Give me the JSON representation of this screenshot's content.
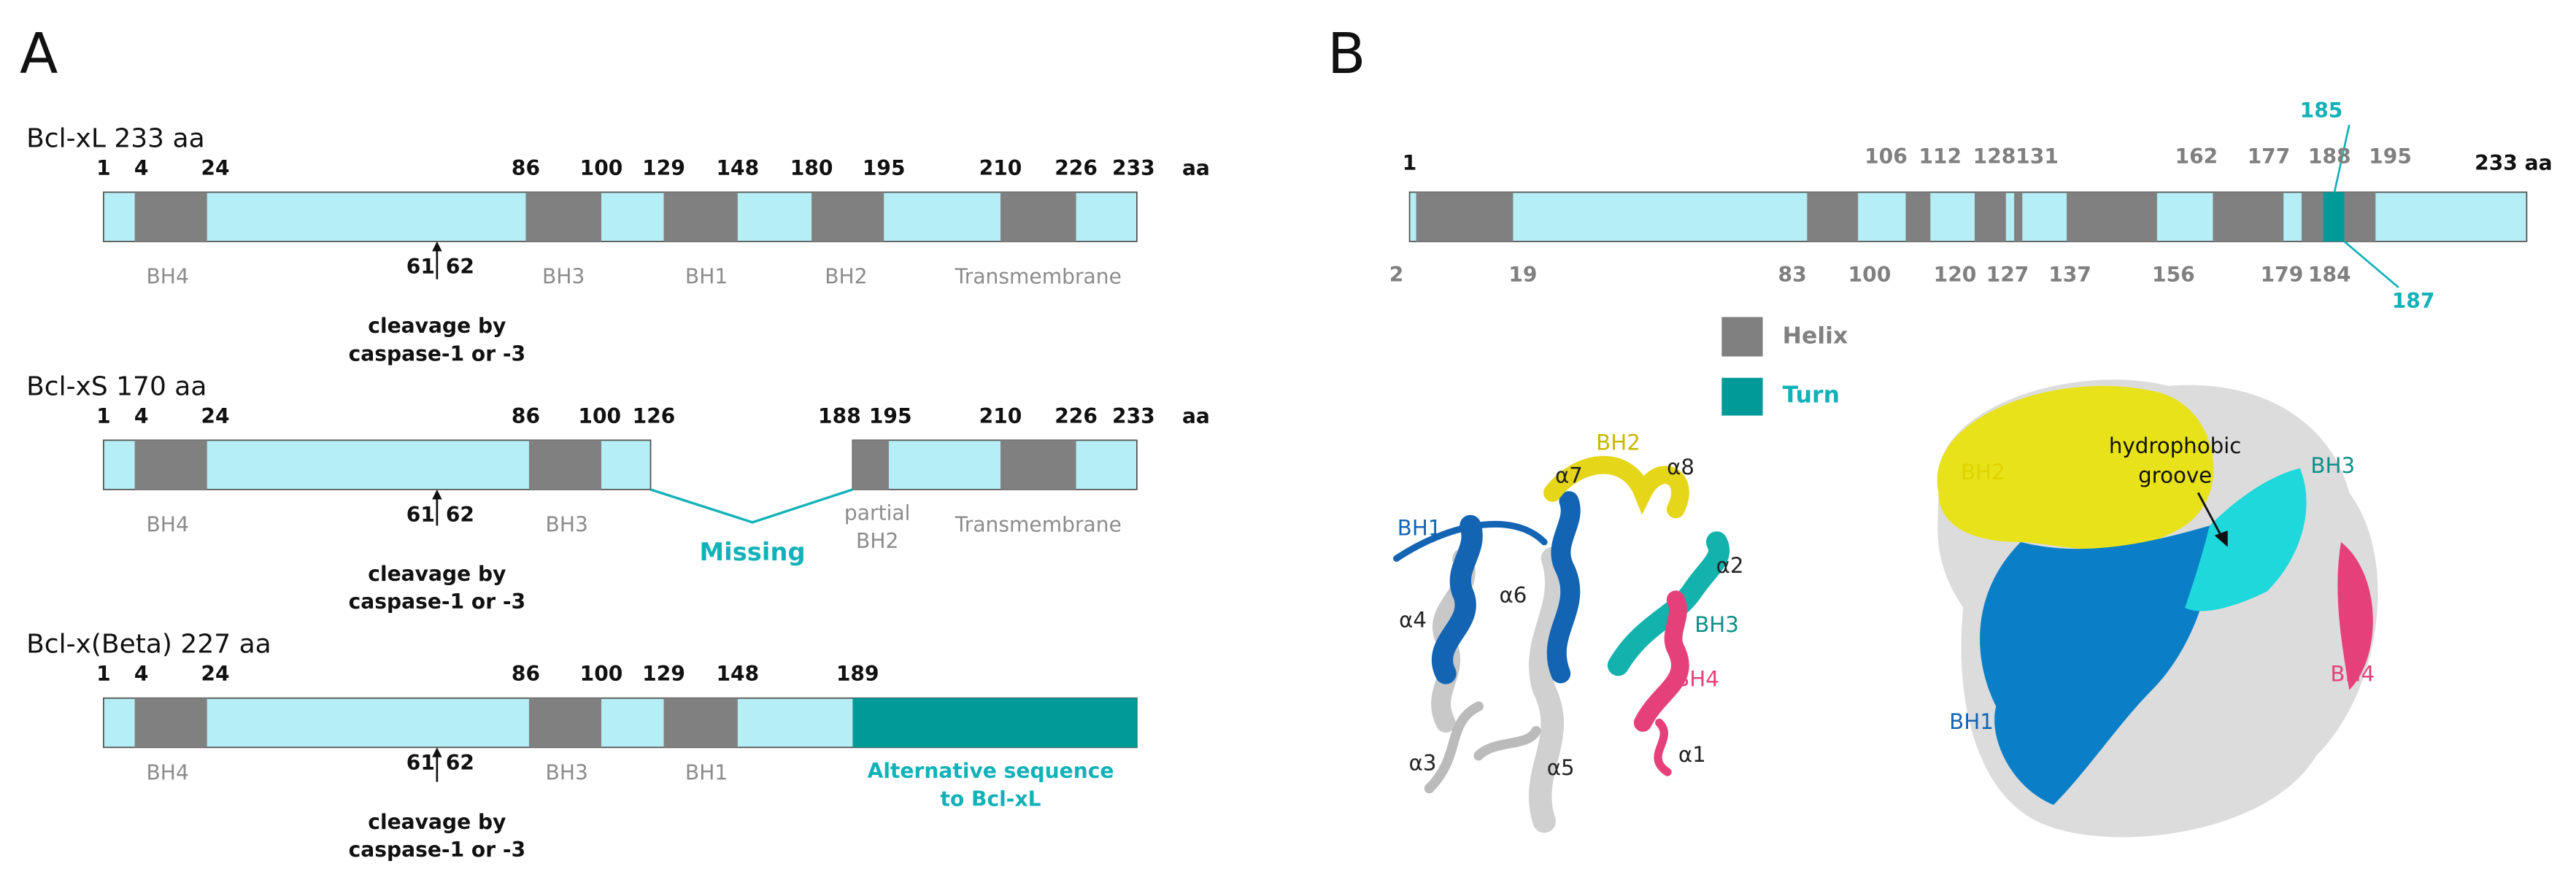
{
  "panels": [
    {
      "label": "A",
      "constructs": [
        {
          "title": "Bcl-xL 233 aa",
          "positions": [
            1,
            4,
            24,
            86,
            100,
            129,
            148,
            180,
            195,
            210,
            226,
            233
          ],
          "unit": "aa",
          "domains": [
            "BH4",
            "BH3",
            "BH1",
            "BH2",
            "Transmembrane"
          ],
          "cleavage_sites": [
            61,
            62
          ],
          "cleavage_note": [
            "cleavage by",
            "caspase-1 or -3"
          ]
        },
        {
          "title": "Bcl-xS 170 aa",
          "positions": [
            1,
            4,
            24,
            86,
            100,
            126,
            188,
            195,
            210,
            226,
            233
          ],
          "unit": "aa",
          "domains": [
            "BH4",
            "BH3",
            "Transmembrane"
          ],
          "partial_label": [
            "partial",
            "BH2"
          ],
          "missing_label": "Missing",
          "cleavage_sites": [
            61,
            62
          ],
          "cleavage_note": [
            "cleavage by",
            "caspase-1 or -3"
          ]
        },
        {
          "title": "Bcl-x(Beta) 227 aa",
          "positions": [
            1,
            4,
            24,
            86,
            100,
            129,
            148,
            189
          ],
          "domains": [
            "BH4",
            "BH3",
            "BH1"
          ],
          "alternative_note": [
            "Alternative sequence",
            "to Bcl-xL"
          ],
          "cleavage_sites": [
            61,
            62
          ],
          "cleavage_note": [
            "cleavage by",
            "caspase-1 or -3"
          ]
        }
      ]
    },
    {
      "label": "B",
      "start": 1,
      "end": "233 aa",
      "top_positions": [
        106,
        112,
        128,
        131,
        162,
        177,
        188,
        195
      ],
      "bottom_positions": [
        2,
        19,
        83,
        100,
        120,
        127,
        137,
        156,
        179,
        184
      ],
      "turn_positions": [
        185,
        187
      ],
      "legend": [
        "Helix",
        "Turn"
      ],
      "ribbon_labels": [
        "BH2",
        "α7",
        "α8",
        "BH1",
        "α2",
        "α4",
        "α6",
        "BH3",
        "BH4",
        "α3",
        "α5",
        "α1"
      ],
      "surface_labels": [
        "BH2",
        "hydrophobic",
        "groove",
        "BH3",
        "BH4",
        "BH1"
      ]
    }
  ]
}
